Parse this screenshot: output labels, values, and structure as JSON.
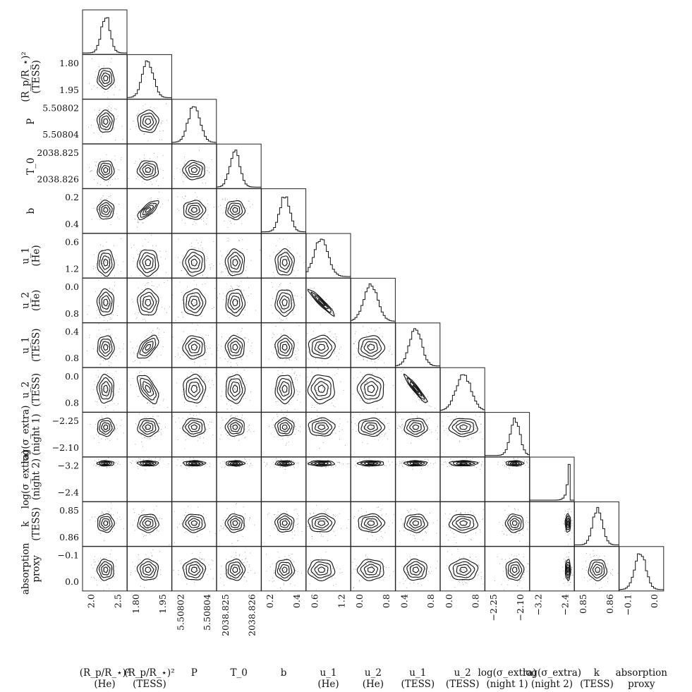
{
  "chart_data": {
    "type": "corner",
    "parameters": [
      {
        "label_lines": [
          "(R_p/R_⋆)²",
          "(He)"
        ],
        "ticks": [
          "2.0",
          "2.5"
        ],
        "range": [
          1.85,
          2.75
        ]
      },
      {
        "label_lines": [
          "(R_p/R_⋆)²",
          "(TESS)"
        ],
        "ticks": [
          "1.80",
          "1.95"
        ],
        "range": [
          1.72,
          2.0
        ]
      },
      {
        "label_lines": [
          "P"
        ],
        "ticks": [
          "5.50802",
          "5.50804"
        ],
        "range": [
          5.508013,
          5.508047
        ]
      },
      {
        "label_lines": [
          "T_0"
        ],
        "ticks": [
          "2038.825",
          "2038.826"
        ],
        "range": [
          2038.8244,
          2038.8266
        ]
      },
      {
        "label_lines": [
          "b"
        ],
        "ticks": [
          "0.2",
          "0.4"
        ],
        "range": [
          0.12,
          0.52
        ]
      },
      {
        "label_lines": [
          "u_1",
          "(He)"
        ],
        "ticks": [
          "0.6",
          "1.2"
        ],
        "range": [
          0.15,
          1.55
        ]
      },
      {
        "label_lines": [
          "u_2",
          "(He)"
        ],
        "ticks": [
          "0.0",
          "0.8"
        ],
        "range": [
          -0.45,
          0.95
        ]
      },
      {
        "label_lines": [
          "u_1",
          "(TESS)"
        ],
        "ticks": [
          "0.4",
          "0.8"
        ],
        "range": [
          0.1,
          0.9
        ]
      },
      {
        "label_lines": [
          "u_2",
          "(TESS)"
        ],
        "ticks": [
          "0.0",
          "0.8"
        ],
        "range": [
          -0.35,
          0.95
        ]
      },
      {
        "label_lines": [
          "log(σ_extra)",
          "(night 1)"
        ],
        "ticks": [
          "−2.25",
          "−2.10"
        ],
        "range": [
          -2.26,
          -1.98
        ]
      },
      {
        "label_lines": [
          "log(σ_extra)",
          "(night 2)"
        ],
        "ticks": [
          "−3.2",
          "−2.4"
        ],
        "range": [
          -3.75,
          -2.2
        ]
      },
      {
        "label_lines": [
          "k",
          "(TESS)"
        ],
        "ticks": [
          "0.85",
          "0.86"
        ],
        "range": [
          0.845,
          0.868
        ]
      },
      {
        "label_lines": [
          "absorption",
          "proxy"
        ],
        "ticks": [
          "−0.1",
          "0.0"
        ],
        "range": [
          -0.18,
          0.02
        ]
      }
    ],
    "medians": [
      2.32,
      1.85,
      5.50803,
      2038.8253,
      0.33,
      0.62,
      0.18,
      0.46,
      0.33,
      -2.07,
      -2.38,
      0.857,
      -0.085
    ],
    "sigmas": [
      0.09,
      0.035,
      4.5e-06,
      0.00025,
      0.045,
      0.22,
      0.22,
      0.11,
      0.22,
      0.03,
      0.05,
      0.0025,
      0.025
    ],
    "correlations": [
      {
        "pair": [
          5,
          6
        ],
        "rho": -0.95
      },
      {
        "pair": [
          7,
          8
        ],
        "rho": -0.95
      },
      {
        "pair": [
          1,
          4
        ],
        "rho": 0.75
      },
      {
        "pair": [
          1,
          7
        ],
        "rho": 0.6
      },
      {
        "pair": [
          1,
          8
        ],
        "rho": -0.6
      }
    ],
    "skewed": [
      10
    ],
    "contour_levels": [
      0.5,
      1.0,
      1.5,
      2.0
    ]
  }
}
